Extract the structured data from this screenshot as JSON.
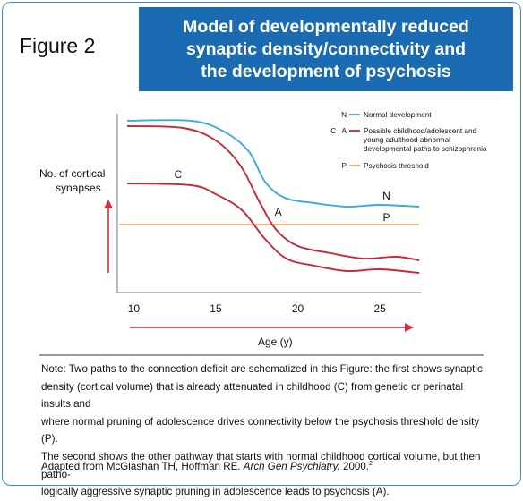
{
  "figure_label": "Figure 2",
  "title_lines": [
    "Model of developmentally reduced",
    "synaptic density/connectivity and",
    "the development of psychosis"
  ],
  "colors": {
    "normal": "#3fa9dc",
    "abnormal": "#c8273a",
    "threshold": "#f0a35c",
    "header": "#1b6bb2",
    "arrow": "#d2303f"
  },
  "chart_data": {
    "type": "line",
    "xlabel": "Age (y)",
    "ylabel": "No. of cortical synapses",
    "xlim": [
      9,
      27.5
    ],
    "x_ticks": [
      10,
      15,
      20,
      25
    ],
    "legend_position": "top-right",
    "legend": [
      {
        "key": "N",
        "label": "Normal development",
        "color": "#3fa9dc"
      },
      {
        "key": "C , A",
        "label": "Possible childhood/adolescent and young adulthood abnormal developmental paths to schizophrenia",
        "color": "#c8273a"
      },
      {
        "key": "P",
        "label": "Psychosis threshold",
        "color": "#f0a35c"
      }
    ],
    "series": [
      {
        "name": "N",
        "color": "#3fa9dc",
        "x": [
          9.6,
          13.5,
          15.5,
          17.0,
          18.0,
          19.2,
          21.0,
          23.0,
          25.0,
          27.4
        ],
        "y": [
          96,
          96,
          90,
          79,
          62,
          53,
          50,
          48,
          49,
          48
        ]
      },
      {
        "name": "A",
        "color": "#c8273a",
        "x": [
          9.6,
          13.0,
          15.0,
          16.5,
          17.7,
          18.7,
          20.0,
          22.0,
          24.0,
          26.0,
          27.4
        ],
        "y": [
          93,
          92,
          85,
          71,
          50,
          35,
          26,
          22,
          19,
          20,
          18
        ]
      },
      {
        "name": "C",
        "color": "#c8273a",
        "x": [
          9.6,
          13.5,
          15.0,
          16.6,
          18.0,
          19.3,
          21.0,
          23.0,
          25.0,
          27.4
        ],
        "y": [
          61,
          60,
          55,
          46,
          30,
          19,
          15,
          12,
          13,
          11
        ]
      }
    ],
    "threshold": {
      "name": "P",
      "y": 38,
      "color": "#f0a35c"
    },
    "annotations": [
      {
        "text": "C",
        "x": 12.7,
        "y": 66
      },
      {
        "text": "A",
        "x": 18.8,
        "y": 45
      },
      {
        "text": "N",
        "x": 25.4,
        "y": 54
      },
      {
        "text": "P",
        "x": 25.4,
        "y": 42
      }
    ]
  },
  "note_lines": [
    "Note: Two paths to the connection deficit are schematized in this Figure: the first shows synaptic",
    "density (cortical volume) that is already attenuated in childhood (C) from genetic or perinatal insults and",
    "where normal pruning of adolescence drives connectivity below the psychosis threshold density (P).",
    "The second shows the other pathway that starts with normal childhood cortical volume, but then patho-",
    "logically aggressive synaptic pruning in adolescence leads to psychosis (A)."
  ],
  "citation": {
    "prefix": "Adapted from McGlashan TH, Hoffman RE. ",
    "journal": "Arch Gen Psychiatry.",
    "year": " 2000.",
    "ref": "2"
  }
}
